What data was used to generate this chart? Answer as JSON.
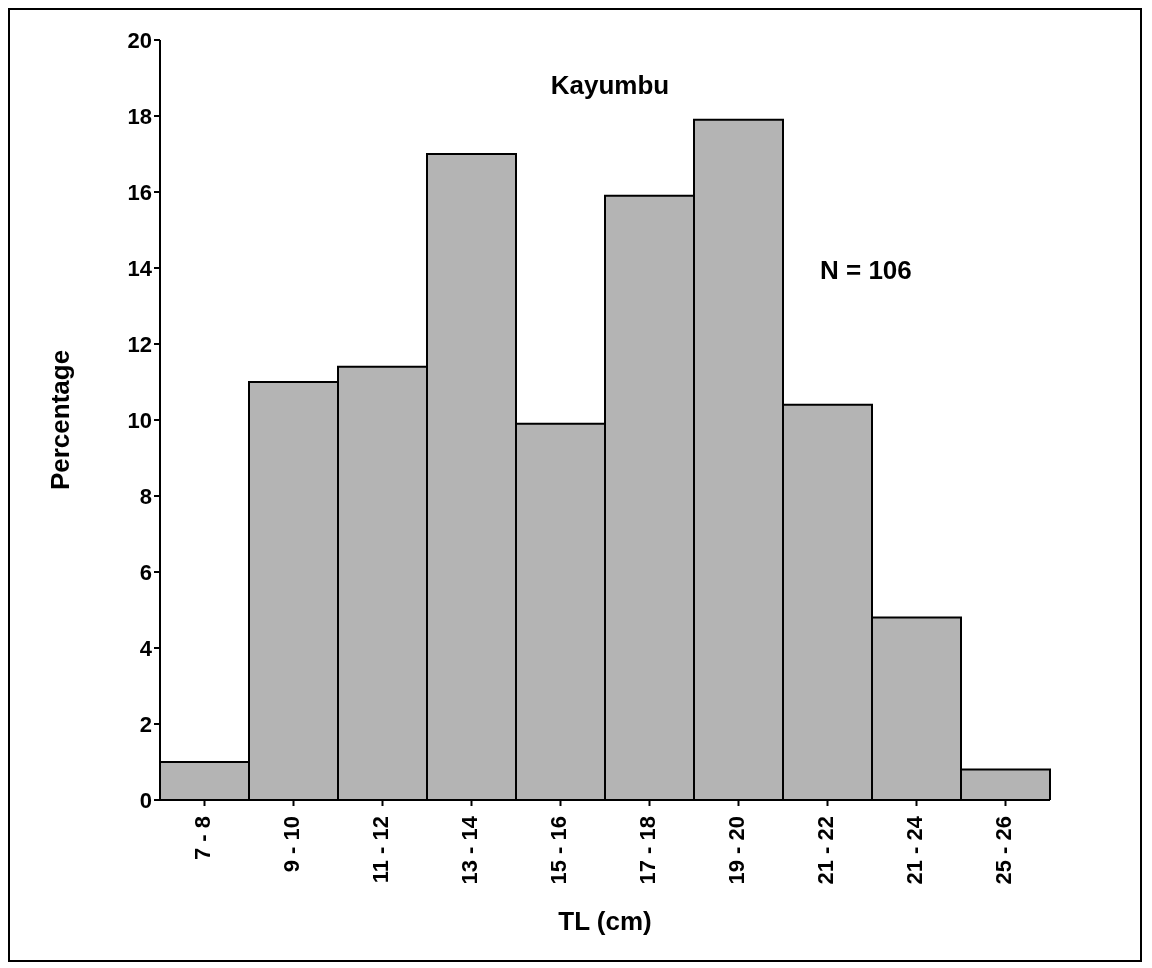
{
  "chart_data": {
    "type": "bar",
    "title": "Kayumbu",
    "xlabel": "TL (cm)",
    "ylabel": "Percentage",
    "categories": [
      "7 - 8",
      "9 - 10",
      "11 - 12",
      "13 - 14",
      "15 - 16",
      "17 - 18",
      "19 - 20",
      "21 - 22",
      "21 - 24",
      "25 - 26"
    ],
    "values": [
      1,
      11,
      11.4,
      17,
      9.9,
      15.9,
      17.9,
      10.4,
      4.8,
      0.8
    ],
    "color": "#b4b4b4",
    "ylim": [
      0,
      20
    ],
    "yticks": [
      0,
      2,
      4,
      6,
      8,
      10,
      12,
      14,
      16,
      18,
      20
    ],
    "annotations": [
      "N = 106"
    ]
  }
}
